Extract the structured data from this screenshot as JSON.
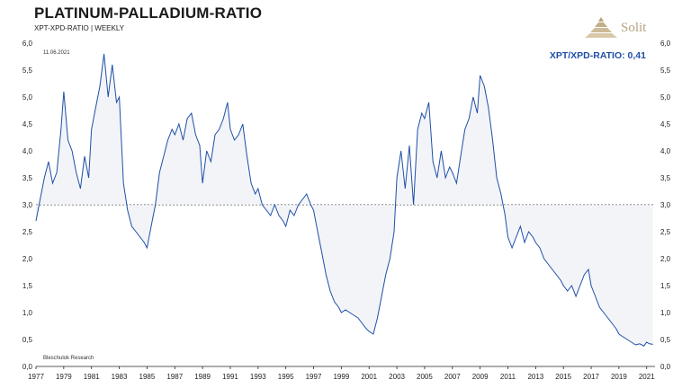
{
  "chart_data": {
    "type": "line",
    "title": "PLATINUM-PALLADIUM-RATIO",
    "subtitle": "XPT-XPD-RATIO | WEEKLY",
    "date_stamp": "11.06.2021",
    "source": "Bleschulok Research",
    "value_label": "XPT/XPD-RATIO: 0,41",
    "reference_line": 3.0,
    "ylim": [
      0,
      6
    ],
    "xlim": [
      1977,
      2021.6
    ],
    "y_ticks": [
      "0,0",
      "0,5",
      "1,0",
      "1,5",
      "2,0",
      "2,5",
      "3,0",
      "3,5",
      "4,0",
      "4,5",
      "5,0",
      "5,5",
      "6,0"
    ],
    "x_ticks": [
      "1977",
      "1979",
      "1981",
      "1983",
      "1985",
      "1987",
      "1989",
      "1991",
      "1993",
      "1995",
      "1997",
      "1999",
      "2001",
      "2003",
      "2005",
      "2007",
      "2009",
      "2011",
      "2013",
      "2015",
      "2017",
      "2019",
      "2021"
    ],
    "line_color": "#1f4fa8",
    "series": [
      {
        "x": [
          1977.0,
          1977.3,
          1977.6,
          1977.9,
          1978.2,
          1978.5,
          1978.8,
          1979.0,
          1979.3,
          1979.6,
          1979.9,
          1980.2,
          1980.5,
          1980.8,
          1981.0,
          1981.3,
          1981.6,
          1981.9,
          1982.2,
          1982.5,
          1982.8,
          1983.0,
          1983.3,
          1983.6,
          1983.9,
          1984.2,
          1984.5,
          1984.8,
          1985.0,
          1985.3,
          1985.6,
          1985.9,
          1986.2,
          1986.5,
          1986.8,
          1987.0,
          1987.3,
          1987.6,
          1987.9,
          1988.2,
          1988.5,
          1988.8,
          1989.0,
          1989.3,
          1989.6,
          1989.9,
          1990.2,
          1990.5,
          1990.8,
          1991.0,
          1991.3,
          1991.6,
          1991.9,
          1992.2,
          1992.5,
          1992.8,
          1993.0,
          1993.3,
          1993.6,
          1993.9,
          1994.2,
          1994.5,
          1994.8,
          1995.0,
          1995.3,
          1995.6,
          1995.9,
          1996.2,
          1996.5,
          1996.8,
          1997.0,
          1997.3,
          1997.6,
          1997.9,
          1998.2,
          1998.5,
          1998.8,
          1999.0,
          1999.3,
          1999.6,
          1999.9,
          2000.2,
          2000.5,
          2000.8,
          2001.0,
          2001.3,
          2001.6,
          2001.9,
          2002.2,
          2002.5,
          2002.8,
          2003.0,
          2003.3,
          2003.6,
          2003.9,
          2004.2,
          2004.5,
          2004.8,
          2005.0,
          2005.3,
          2005.6,
          2005.9,
          2006.2,
          2006.5,
          2006.8,
          2007.0,
          2007.3,
          2007.6,
          2007.9,
          2008.2,
          2008.5,
          2008.8,
          2009.0,
          2009.3,
          2009.6,
          2009.9,
          2010.2,
          2010.5,
          2010.8,
          2011.0,
          2011.3,
          2011.6,
          2011.9,
          2012.2,
          2012.5,
          2012.8,
          2013.0,
          2013.3,
          2013.6,
          2013.9,
          2014.2,
          2014.5,
          2014.8,
          2015.0,
          2015.3,
          2015.6,
          2015.9,
          2016.2,
          2016.5,
          2016.8,
          2017.0,
          2017.3,
          2017.6,
          2017.9,
          2018.2,
          2018.5,
          2018.8,
          2019.0,
          2019.3,
          2019.6,
          2019.9,
          2020.2,
          2020.5,
          2020.8,
          2021.0,
          2021.2,
          2021.45
        ],
        "y": [
          2.7,
          3.1,
          3.5,
          3.8,
          3.4,
          3.6,
          4.4,
          5.1,
          4.2,
          4.0,
          3.6,
          3.3,
          3.9,
          3.5,
          4.4,
          4.8,
          5.2,
          5.8,
          5.0,
          5.6,
          4.9,
          5.0,
          3.4,
          2.9,
          2.6,
          2.5,
          2.4,
          2.3,
          2.2,
          2.6,
          3.0,
          3.6,
          3.9,
          4.2,
          4.4,
          4.3,
          4.5,
          4.2,
          4.6,
          4.7,
          4.3,
          4.1,
          3.4,
          4.0,
          3.8,
          4.3,
          4.4,
          4.6,
          4.9,
          4.4,
          4.2,
          4.3,
          4.5,
          3.9,
          3.4,
          3.2,
          3.3,
          3.0,
          2.9,
          2.8,
          3.0,
          2.8,
          2.7,
          2.6,
          2.9,
          2.8,
          3.0,
          3.1,
          3.2,
          3.0,
          2.9,
          2.5,
          2.1,
          1.7,
          1.4,
          1.2,
          1.1,
          1.0,
          1.05,
          1.0,
          0.95,
          0.9,
          0.8,
          0.7,
          0.65,
          0.6,
          0.9,
          1.3,
          1.7,
          2.0,
          2.5,
          3.5,
          4.0,
          3.3,
          4.1,
          3.0,
          4.4,
          4.7,
          4.6,
          4.9,
          3.8,
          3.5,
          4.0,
          3.5,
          3.7,
          3.6,
          3.4,
          3.9,
          4.4,
          4.6,
          5.0,
          4.7,
          5.4,
          5.2,
          4.8,
          4.2,
          3.5,
          3.2,
          2.8,
          2.4,
          2.2,
          2.4,
          2.6,
          2.3,
          2.5,
          2.4,
          2.3,
          2.2,
          2.0,
          1.9,
          1.8,
          1.7,
          1.6,
          1.5,
          1.4,
          1.5,
          1.3,
          1.5,
          1.7,
          1.8,
          1.5,
          1.3,
          1.1,
          1.0,
          0.9,
          0.8,
          0.7,
          0.6,
          0.55,
          0.5,
          0.45,
          0.4,
          0.42,
          0.38,
          0.45,
          0.42,
          0.41
        ]
      }
    ]
  }
}
